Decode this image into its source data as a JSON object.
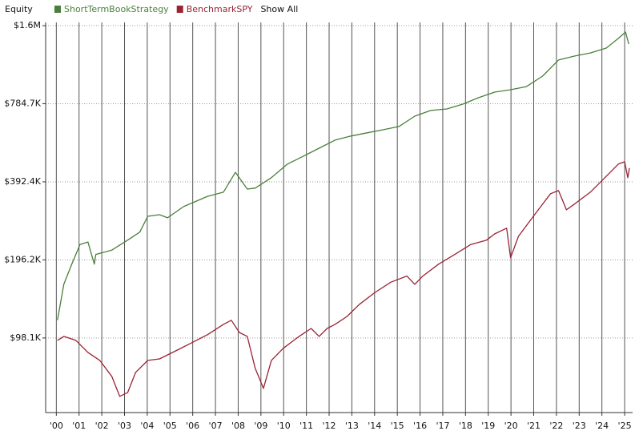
{
  "chart_data": {
    "type": "line",
    "y_label": "Equity",
    "show_all": "Show All",
    "log_scale": true,
    "grid": true,
    "xlim": [
      1999.53,
      2025.35
    ],
    "xticks": [
      {
        "value": 2000,
        "label": "'00"
      },
      {
        "value": 2001,
        "label": "'01"
      },
      {
        "value": 2002,
        "label": "'02"
      },
      {
        "value": 2003,
        "label": "'03"
      },
      {
        "value": 2004,
        "label": "'04"
      },
      {
        "value": 2005,
        "label": "'05"
      },
      {
        "value": 2006,
        "label": "'06"
      },
      {
        "value": 2007,
        "label": "'07"
      },
      {
        "value": 2008,
        "label": "'08"
      },
      {
        "value": 2009,
        "label": "'09"
      },
      {
        "value": 2010,
        "label": "'10"
      },
      {
        "value": 2011,
        "label": "'11"
      },
      {
        "value": 2012,
        "label": "'12"
      },
      {
        "value": 2013,
        "label": "'13"
      },
      {
        "value": 2014,
        "label": "'14"
      },
      {
        "value": 2015,
        "label": "'15"
      },
      {
        "value": 2016,
        "label": "'16"
      },
      {
        "value": 2017,
        "label": "'17"
      },
      {
        "value": 2018,
        "label": "'18"
      },
      {
        "value": 2019,
        "label": "'19"
      },
      {
        "value": 2020,
        "label": "'20"
      },
      {
        "value": 2021,
        "label": "'21"
      },
      {
        "value": 2022,
        "label": "'22"
      },
      {
        "value": 2023,
        "label": "'23"
      },
      {
        "value": 2024,
        "label": "'24"
      },
      {
        "value": 2025,
        "label": "'25"
      }
    ],
    "ylim": [
      50600,
      1615000
    ],
    "yticks": [
      {
        "value": 98100,
        "label": "$98.1K"
      },
      {
        "value": 196200,
        "label": "$196.2K"
      },
      {
        "value": 392400,
        "label": "$392.4K"
      },
      {
        "value": 784700,
        "label": "$784.7K"
      },
      {
        "value": 1569400,
        "label": "$1.6M"
      }
    ],
    "series": [
      {
        "name": "ShortTermBookStrategy",
        "color": "#4a7f3a",
        "x": [
          2000.05,
          2000.33,
          2000.68,
          2001.04,
          2001.39,
          2001.67,
          2001.74,
          2002.44,
          2003.14,
          2003.67,
          2004.02,
          2004.54,
          2004.89,
          2005.6,
          2006.65,
          2007.35,
          2007.88,
          2008.4,
          2008.75,
          2009.46,
          2010.16,
          2010.86,
          2011.56,
          2012.26,
          2012.96,
          2013.67,
          2014.37,
          2015.07,
          2015.77,
          2016.47,
          2017.18,
          2017.88,
          2018.58,
          2019.28,
          2019.98,
          2020.68,
          2021.39,
          2022.09,
          2022.79,
          2023.49,
          2024.19,
          2024.72,
          2025.04,
          2025.18
        ],
        "values": [
          115000,
          158000,
          189000,
          225000,
          230000,
          189000,
          206000,
          214000,
          234000,
          251000,
          289000,
          293000,
          285000,
          315000,
          345000,
          358000,
          427000,
          368000,
          371000,
          407000,
          459000,
          492000,
          529000,
          568000,
          589000,
          606000,
          623000,
          641000,
          703000,
          739000,
          749000,
          782000,
          828000,
          870000,
          889000,
          914000,
          1003000,
          1157000,
          1198000,
          1232000,
          1286000,
          1401000,
          1483000,
          1333000
        ]
      },
      {
        "name": "BenchmarkSPY",
        "color": "#9b2335",
        "x": [
          2000.05,
          2000.33,
          2000.86,
          2001.39,
          2001.91,
          2002.44,
          2002.79,
          2003.14,
          2003.49,
          2004.02,
          2004.54,
          2005.25,
          2005.95,
          2006.65,
          2007.35,
          2007.7,
          2008.05,
          2008.4,
          2008.75,
          2009.11,
          2009.46,
          2009.98,
          2010.68,
          2011.21,
          2011.56,
          2011.91,
          2012.26,
          2012.79,
          2013.32,
          2014.02,
          2014.72,
          2015.42,
          2015.77,
          2016.12,
          2016.82,
          2017.53,
          2018.23,
          2018.93,
          2019.28,
          2019.81,
          2019.98,
          2020.33,
          2021.04,
          2021.74,
          2022.09,
          2022.44,
          2022.79,
          2023.49,
          2024.19,
          2024.72,
          2025.0,
          2025.14,
          2025.21
        ],
        "values": [
          96000,
          99500,
          96000,
          86300,
          80400,
          69800,
          58400,
          60500,
          72300,
          80400,
          81500,
          87500,
          94000,
          101000,
          110700,
          114800,
          103000,
          99500,
          74900,
          62700,
          80400,
          89500,
          99500,
          106800,
          99500,
          106800,
          110700,
          118800,
          132000,
          147000,
          161000,
          170000,
          158000,
          170000,
          189000,
          206000,
          225000,
          234000,
          247000,
          260000,
          200000,
          242000,
          293000,
          353000,
          363000,
          306000,
          322000,
          358000,
          412000,
          459000,
          469000,
          407000,
          443000
        ]
      }
    ]
  }
}
